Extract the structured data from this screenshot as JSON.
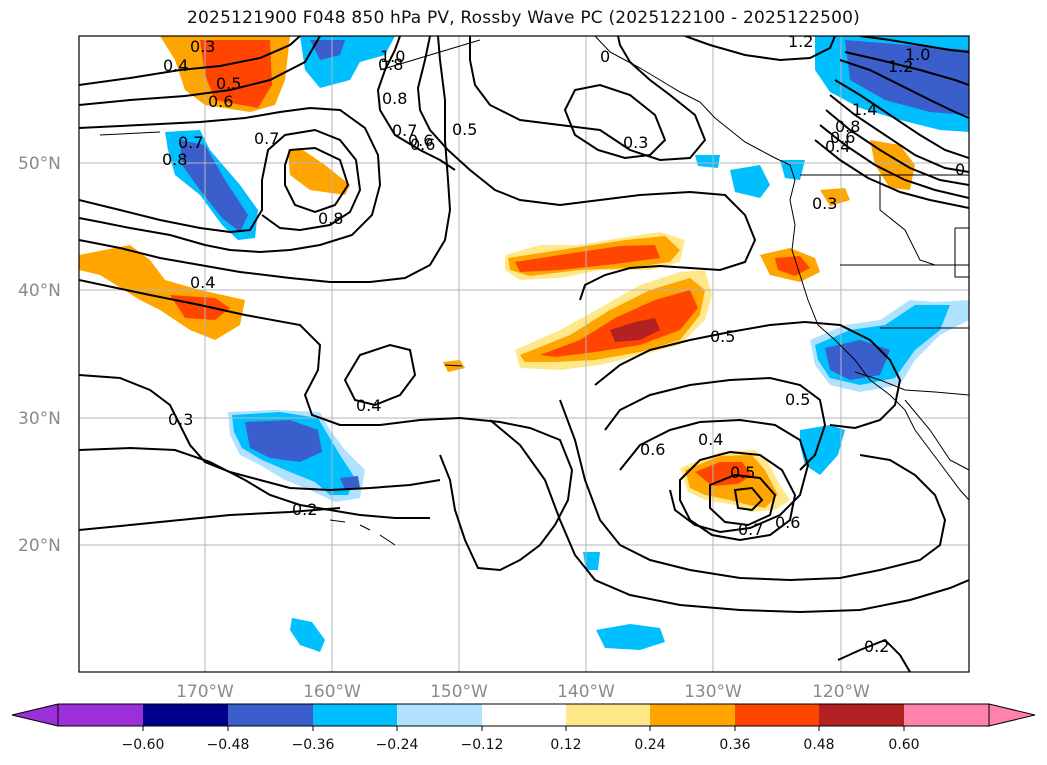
{
  "title": "2025121900 F048 850 hPa PV, Rossby Wave PC (2025122100 - 2025122500)",
  "axes": {
    "lat_ticks": [
      "50°N",
      "40°N",
      "30°N",
      "20°N"
    ],
    "lon_ticks": [
      "170°W",
      "160°W",
      "150°W",
      "140°W",
      "130°W",
      "120°W"
    ]
  },
  "colorbar": {
    "ticks": [
      "−0.60",
      "−0.48",
      "−0.36",
      "−0.24",
      "−0.12",
      "0.12",
      "0.24",
      "0.36",
      "0.48",
      "0.60"
    ],
    "colors": [
      "#9b30d9",
      "#00008b",
      "#3a5fcd",
      "#00bfff",
      "#b0e2ff",
      "#ffffff",
      "#ffe88a",
      "#ffa500",
      "#ff4500",
      "#b22222",
      "#ff82ab"
    ]
  },
  "contour_labels": [
    "0.3",
    "0.4",
    "0.5",
    "0.6",
    "0.7",
    "0.8",
    "0.7",
    "0.8",
    "0.8",
    "0.6",
    "0.8",
    "1.0",
    "0.7",
    "0.6",
    "0.5",
    "0",
    "0.3",
    "1.2",
    "1.0",
    "1.2",
    "1.4",
    "0.8",
    "0.6",
    "0.4",
    "0",
    "0.3",
    "0.4",
    "0.5",
    "0.4",
    "0.3",
    "0.2",
    "0.6",
    "0.4",
    "0.5",
    "0.5",
    "0.7",
    "0.6",
    "0.2"
  ]
}
